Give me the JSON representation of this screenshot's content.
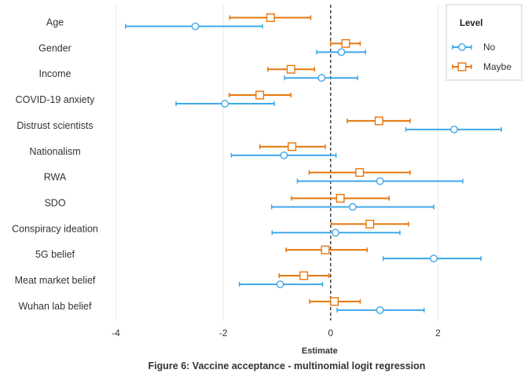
{
  "chart_data": {
    "type": "forest",
    "caption": "Figure 6: Vaccine acceptance - multinomial logit regression",
    "xlabel": "Estimate",
    "xlim": [
      -4.2,
      3.35
    ],
    "xticks": [
      -4,
      -2,
      0,
      2
    ],
    "reference_line_x": 0,
    "grid": true,
    "legend": {
      "title": "Level",
      "position": "top-right"
    },
    "categories": [
      "Age",
      "Gender",
      "Income",
      "COVID-19 anxiety",
      "Distrust scientists",
      "Nationalism",
      "RWA",
      "SDO",
      "Conspiracy ideation",
      "5G belief",
      "Meat market belief",
      "Wuhan lab belief"
    ],
    "series": [
      {
        "name": "No",
        "color": "#3fa9e8",
        "marker": "circle",
        "estimate": [
          -2.52,
          0.2,
          -0.17,
          -1.97,
          2.3,
          -0.87,
          0.92,
          0.41,
          0.09,
          1.92,
          -0.94,
          0.92
        ],
        "lower": [
          -3.82,
          -0.26,
          -0.86,
          -2.88,
          1.4,
          -1.85,
          -0.62,
          -1.1,
          -1.09,
          0.98,
          -1.7,
          0.12
        ],
        "upper": [
          -1.27,
          0.65,
          0.5,
          -1.05,
          3.18,
          0.1,
          2.46,
          1.92,
          1.29,
          2.8,
          -0.15,
          1.74
        ]
      },
      {
        "name": "Maybe",
        "color": "#e8760c",
        "marker": "square",
        "estimate": [
          -1.12,
          0.28,
          -0.74,
          -1.32,
          0.9,
          -0.72,
          0.54,
          0.18,
          0.73,
          -0.1,
          -0.5,
          0.07
        ],
        "lower": [
          -1.88,
          0.0,
          -1.17,
          -1.89,
          0.31,
          -1.32,
          -0.4,
          -0.73,
          0.01,
          -0.83,
          -0.96,
          -0.39
        ],
        "upper": [
          -0.37,
          0.55,
          -0.3,
          -0.74,
          1.48,
          -0.1,
          1.48,
          1.09,
          1.45,
          0.68,
          -0.03,
          0.55
        ]
      }
    ]
  }
}
